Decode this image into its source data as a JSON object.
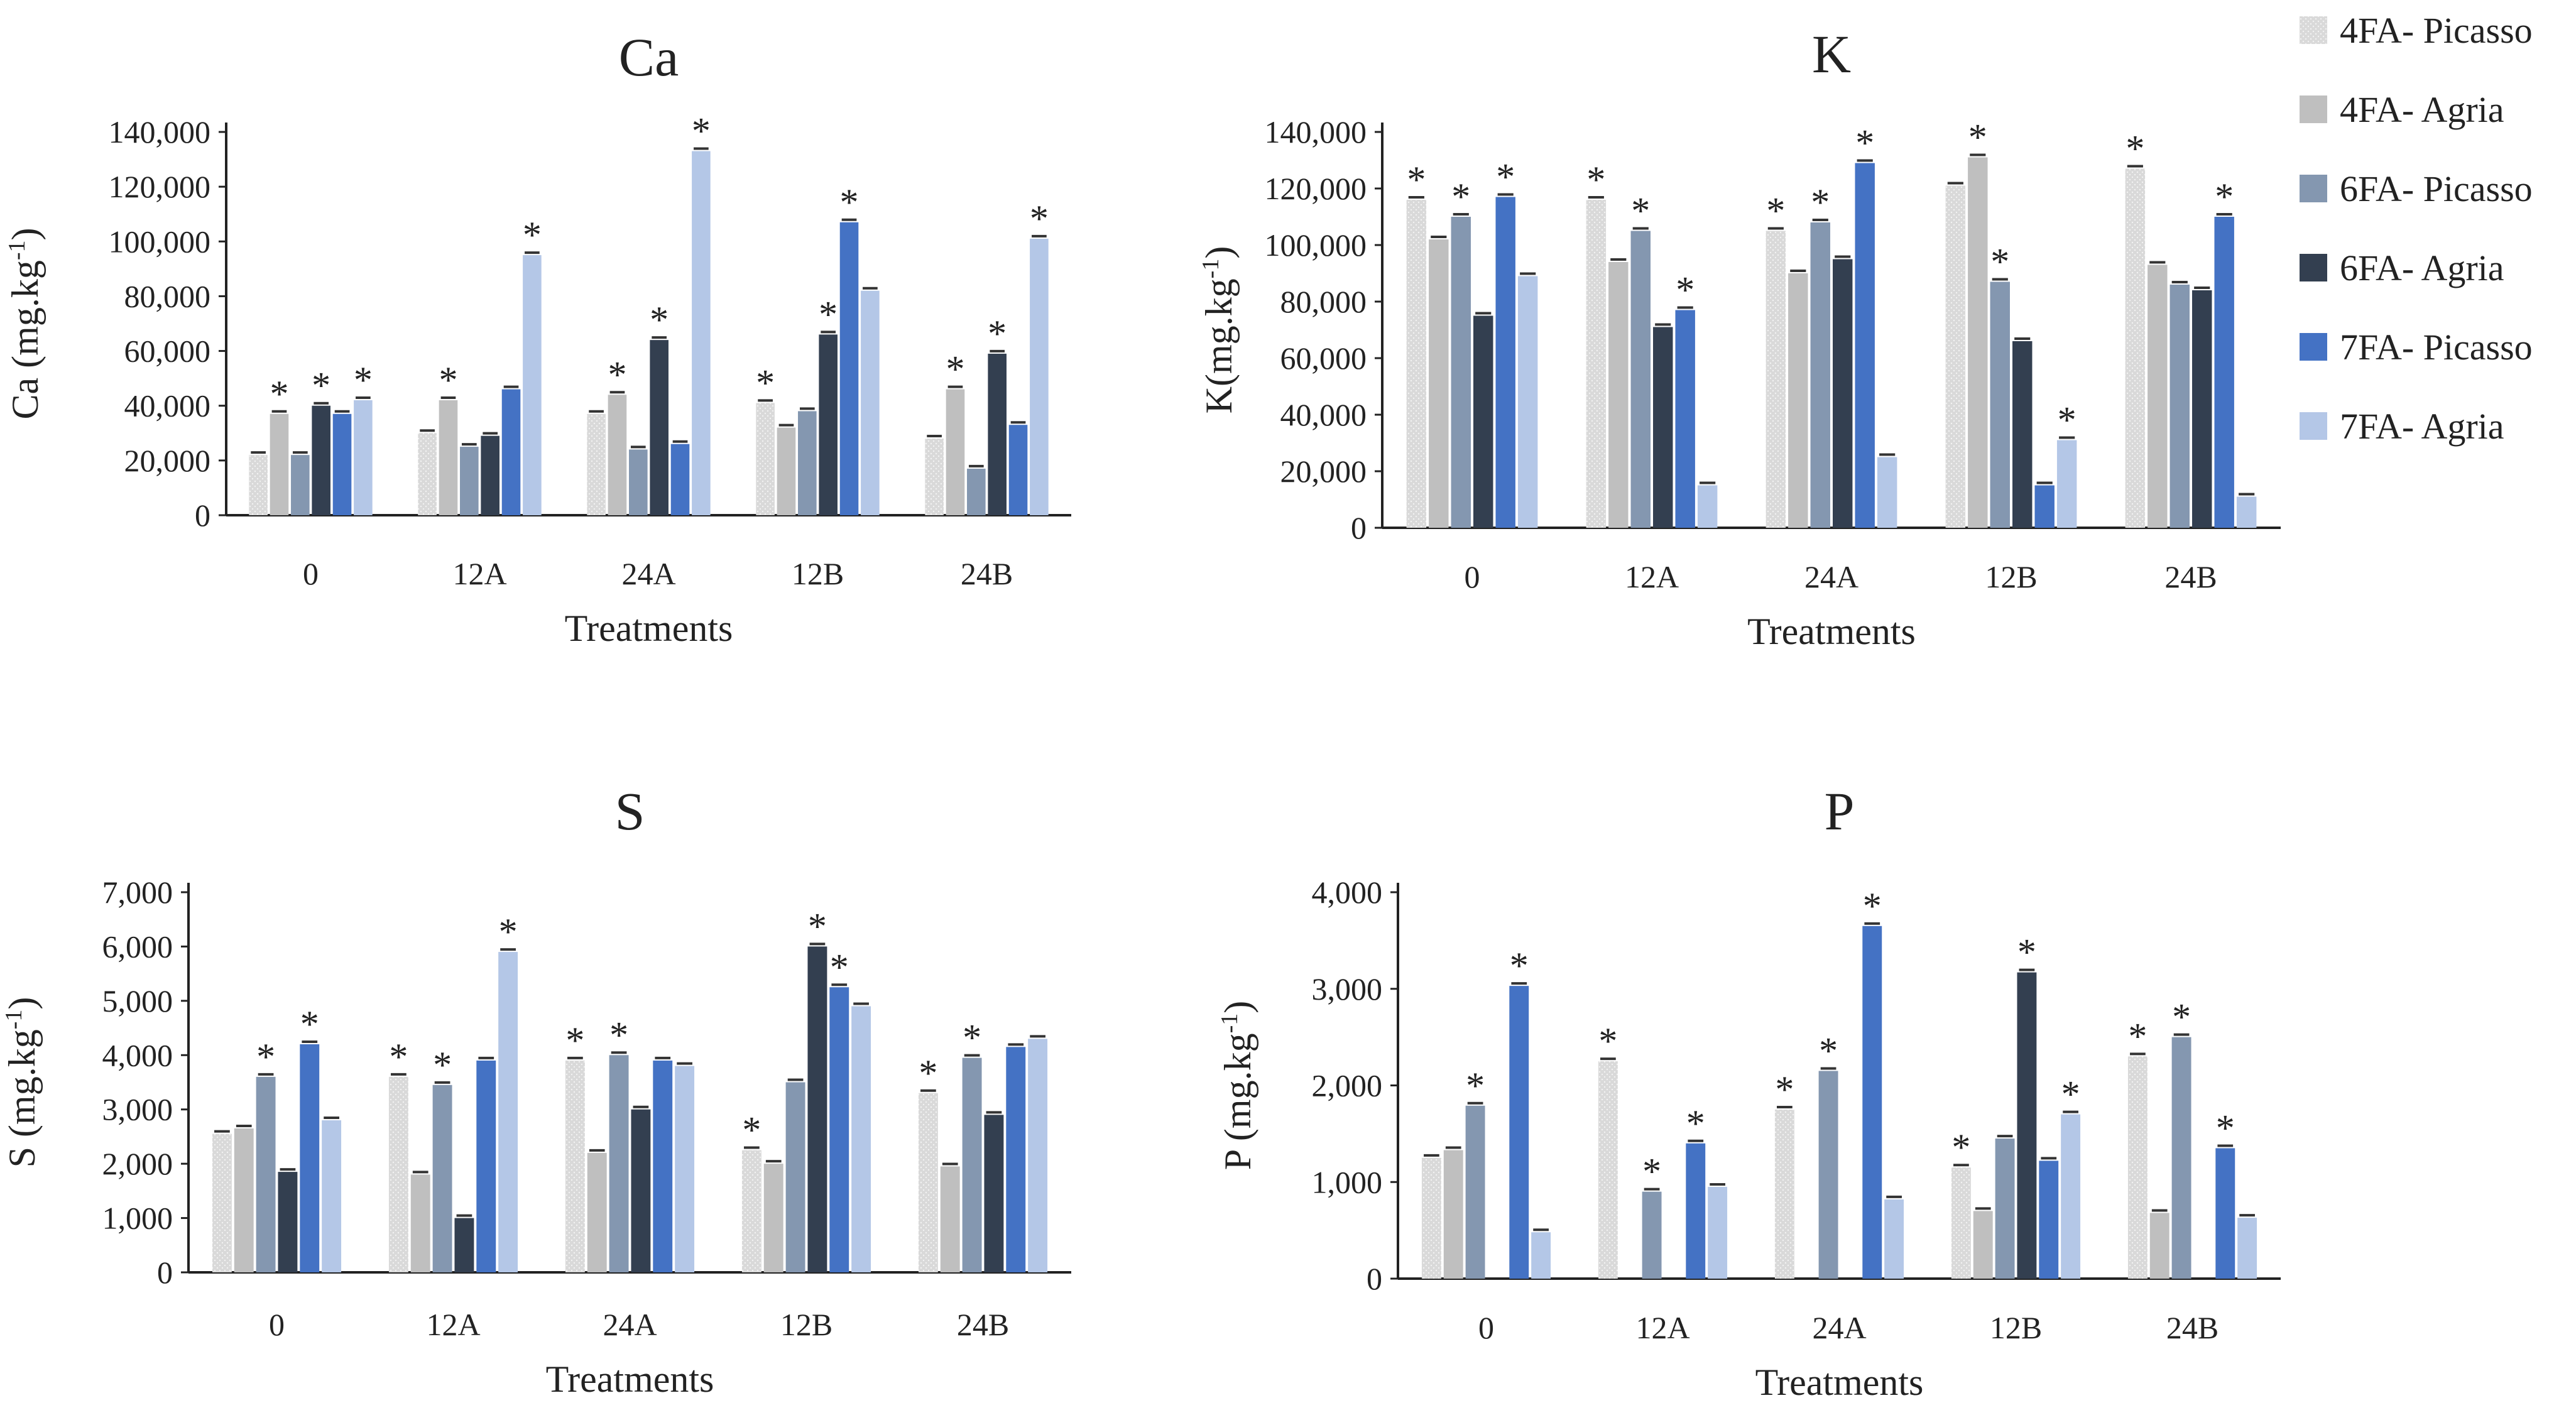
{
  "legend": [
    {
      "name": "4FA- Picasso",
      "color": "#d9d9d9"
    },
    {
      "name": "4FA- Agria",
      "color": "#bfbfbf"
    },
    {
      "name": "6FA- Picasso",
      "color": "#8497b0"
    },
    {
      "name": "6FA- Agria",
      "color": "#333f50"
    },
    {
      "name": "7FA- Picasso",
      "color": "#4472c4"
    },
    {
      "name": "7FA- Agria",
      "color": "#b4c7e7"
    }
  ],
  "chart_data": [
    {
      "type": "bar",
      "title": "Ca",
      "xlabel": "Treatments",
      "ylabel": "Ca (mg.kg-1)",
      "categories": [
        "0",
        "12A",
        "24A",
        "12B",
        "24B"
      ],
      "ylim": [
        0,
        140000
      ],
      "yticks": [
        "0",
        "20,000",
        "40,000",
        "60,000",
        "80,000",
        "100,000",
        "120,000",
        "140,000"
      ],
      "grid": false,
      "legend_position": "right",
      "series": [
        {
          "name": "4FA- Picasso",
          "values": [
            22000,
            30000,
            37000,
            41000,
            28000
          ],
          "significant": [
            false,
            false,
            false,
            true,
            false
          ]
        },
        {
          "name": "4FA- Agria",
          "values": [
            37000,
            42000,
            44000,
            32000,
            46000
          ],
          "significant": [
            true,
            true,
            true,
            false,
            true
          ]
        },
        {
          "name": "6FA- Picasso",
          "values": [
            22000,
            25000,
            24000,
            38000,
            17000
          ],
          "significant": [
            false,
            false,
            false,
            false,
            false
          ]
        },
        {
          "name": "6FA- Agria",
          "values": [
            40000,
            29000,
            64000,
            66000,
            59000
          ],
          "significant": [
            true,
            false,
            true,
            true,
            true
          ]
        },
        {
          "name": "7FA- Picasso",
          "values": [
            37000,
            46000,
            26000,
            107000,
            33000
          ],
          "significant": [
            false,
            false,
            false,
            true,
            false
          ]
        },
        {
          "name": "7FA- Agria",
          "values": [
            42000,
            95000,
            133000,
            82000,
            101000
          ],
          "significant": [
            true,
            true,
            true,
            false,
            true
          ]
        }
      ]
    },
    {
      "type": "bar",
      "title": "K",
      "xlabel": "Treatments",
      "ylabel": "K(mg.kg-1)",
      "categories": [
        "0",
        "12A",
        "24A",
        "12B",
        "24B"
      ],
      "ylim": [
        0,
        140000
      ],
      "yticks": [
        "0",
        "20,000",
        "40,000",
        "60,000",
        "80,000",
        "100,000",
        "120,000",
        "140,000"
      ],
      "grid": false,
      "legend_position": "right",
      "series": [
        {
          "name": "4FA- Picasso",
          "values": [
            116000,
            116000,
            105000,
            121000,
            127000
          ],
          "significant": [
            true,
            true,
            true,
            false,
            true
          ]
        },
        {
          "name": "4FA- Agria",
          "values": [
            102000,
            94000,
            90000,
            131000,
            93000
          ],
          "significant": [
            false,
            false,
            false,
            true,
            false
          ]
        },
        {
          "name": "6FA- Picasso",
          "values": [
            110000,
            105000,
            108000,
            87000,
            86000
          ],
          "significant": [
            true,
            true,
            true,
            true,
            false
          ]
        },
        {
          "name": "6FA- Agria",
          "values": [
            75000,
            71000,
            95000,
            66000,
            84000
          ],
          "significant": [
            false,
            false,
            false,
            false,
            false
          ]
        },
        {
          "name": "7FA- Picasso",
          "values": [
            117000,
            77000,
            129000,
            15000,
            110000
          ],
          "significant": [
            true,
            true,
            true,
            false,
            true
          ]
        },
        {
          "name": "7FA- Agria",
          "values": [
            89000,
            15000,
            25000,
            31000,
            11000
          ],
          "significant": [
            false,
            false,
            false,
            true,
            false
          ]
        }
      ]
    },
    {
      "type": "bar",
      "title": "S",
      "xlabel": "Treatments",
      "ylabel": "S (mg.kg-1)",
      "categories": [
        "0",
        "12A",
        "24A",
        "12B",
        "24B"
      ],
      "ylim": [
        0,
        7000
      ],
      "yticks": [
        "0",
        "1,000",
        "2,000",
        "3,000",
        "4,000",
        "5,000",
        "6,000",
        "7,000"
      ],
      "grid": false,
      "legend_position": "right",
      "series": [
        {
          "name": "4FA- Picasso",
          "values": [
            2550,
            3600,
            3900,
            2250,
            3300
          ],
          "significant": [
            false,
            true,
            true,
            true,
            true
          ]
        },
        {
          "name": "4FA- Agria",
          "values": [
            2650,
            1800,
            2200,
            2000,
            1950
          ],
          "significant": [
            false,
            false,
            false,
            false,
            false
          ]
        },
        {
          "name": "6FA- Picasso",
          "values": [
            3600,
            3450,
            4000,
            3500,
            3950
          ],
          "significant": [
            true,
            true,
            true,
            false,
            true
          ]
        },
        {
          "name": "6FA- Agria",
          "values": [
            1850,
            1000,
            3000,
            6000,
            2900
          ],
          "significant": [
            false,
            false,
            false,
            true,
            false
          ]
        },
        {
          "name": "7FA- Picasso",
          "values": [
            4200,
            3900,
            3900,
            5250,
            4150
          ],
          "significant": [
            true,
            false,
            false,
            true,
            false
          ]
        },
        {
          "name": "7FA- Agria",
          "values": [
            2800,
            5900,
            3800,
            4900,
            4300
          ],
          "significant": [
            false,
            true,
            false,
            false,
            false
          ]
        }
      ]
    },
    {
      "type": "bar",
      "title": "P",
      "xlabel": "Treatments",
      "ylabel": "P (mg.kg-1)",
      "categories": [
        "0",
        "12A",
        "24A",
        "12B",
        "24B"
      ],
      "ylim": [
        0,
        4000
      ],
      "yticks": [
        "0",
        "1,000",
        "2,000",
        "3,000",
        "4,000"
      ],
      "grid": false,
      "legend_position": "right",
      "series": [
        {
          "name": "4FA- Picasso",
          "values": [
            1250,
            2250,
            1750,
            1150,
            2300
          ],
          "significant": [
            false,
            true,
            true,
            true,
            true
          ]
        },
        {
          "name": "4FA- Agria",
          "values": [
            1330,
            0,
            0,
            700,
            680
          ],
          "significant": [
            false,
            false,
            false,
            false,
            false
          ]
        },
        {
          "name": "6FA- Picasso",
          "values": [
            1790,
            900,
            2150,
            1450,
            2500
          ],
          "significant": [
            true,
            true,
            true,
            false,
            true
          ]
        },
        {
          "name": "6FA- Agria",
          "values": [
            0,
            0,
            0,
            3170,
            0
          ],
          "significant": [
            false,
            false,
            false,
            true,
            false
          ]
        },
        {
          "name": "7FA- Picasso",
          "values": [
            3030,
            1400,
            3650,
            1220,
            1350
          ],
          "significant": [
            true,
            true,
            true,
            false,
            true
          ]
        },
        {
          "name": "7FA- Agria",
          "values": [
            480,
            950,
            820,
            1700,
            630
          ],
          "significant": [
            false,
            false,
            false,
            true,
            false
          ]
        }
      ]
    }
  ]
}
